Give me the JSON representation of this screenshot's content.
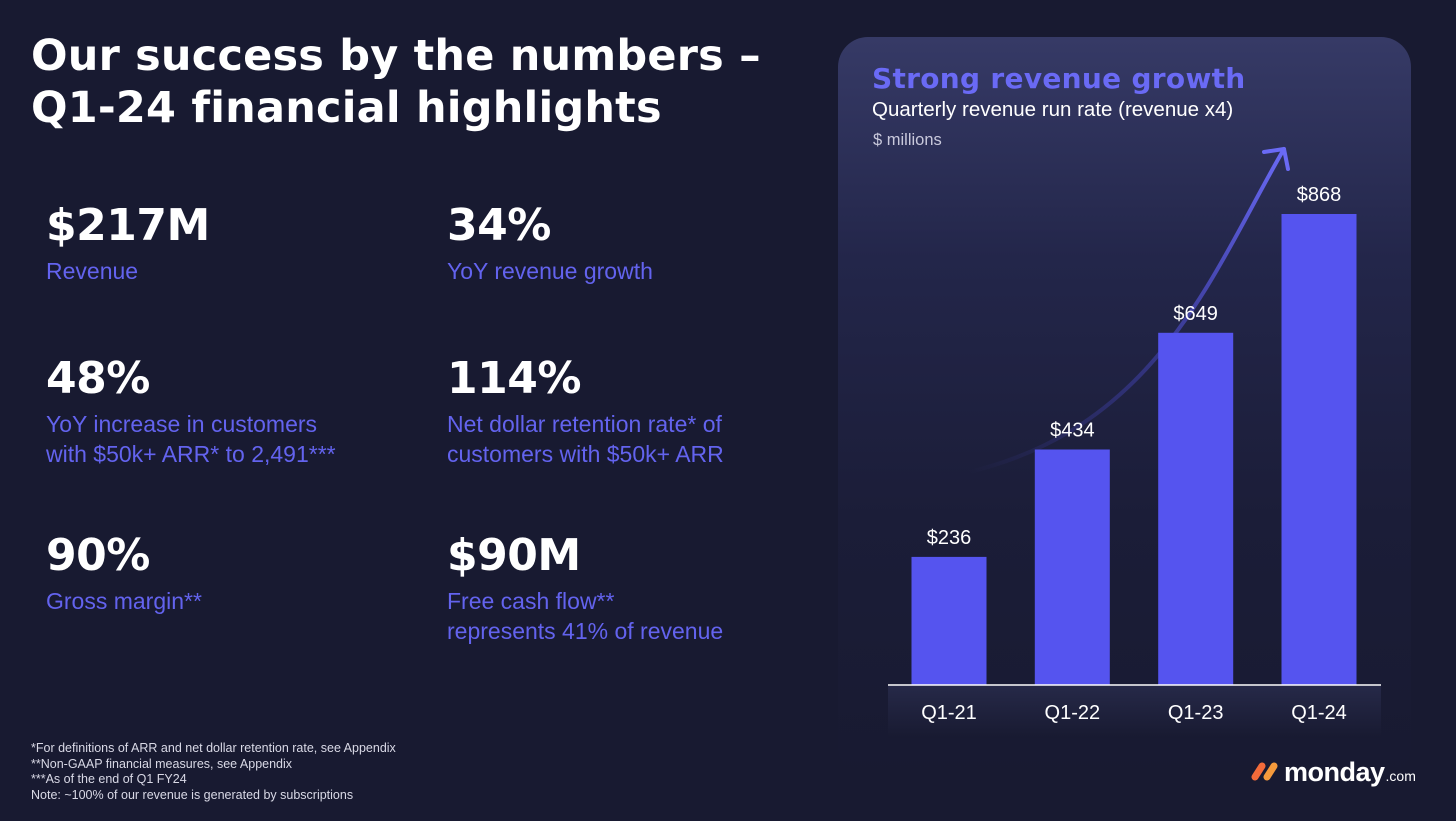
{
  "title": "Our success by the numbers – Q1-24 financial highlights",
  "metrics": [
    {
      "value": "$217M",
      "label_lines": [
        "Revenue"
      ]
    },
    {
      "value": "34%",
      "label_lines": [
        "YoY revenue growth"
      ]
    },
    {
      "value": "48%",
      "label_lines": [
        "YoY increase in customers",
        "with $50k+ ARR* to 2,491***"
      ]
    },
    {
      "value": "114%",
      "label_lines": [
        "Net dollar retention rate* of",
        "customers with $50k+ ARR"
      ]
    },
    {
      "value": "90%",
      "label_lines": [
        "Gross margin**"
      ]
    },
    {
      "value": "$90M",
      "label_lines": [
        "Free cash flow**",
        "represents 41% of revenue"
      ]
    }
  ],
  "footnotes": [
    "*For definitions of ARR and net dollar retention rate, see Appendix",
    "**Non-GAAP financial measures, see Appendix",
    "***As of the end of Q1 FY24",
    "Note: ~100% of our revenue is generated by subscriptions"
  ],
  "logo": {
    "text": "monday",
    "suffix": ".com"
  },
  "colors": {
    "background": "#181a31",
    "accent": "#5554ef",
    "label_text": "#6363ee",
    "logo_mark": [
      "#f26b3a",
      "#f59a3c"
    ]
  },
  "chart_data": {
    "type": "bar",
    "title": "Strong revenue growth",
    "subtitle": "Quarterly revenue run rate (revenue x4)",
    "unit_label": "$ millions",
    "categories": [
      "Q1-21",
      "Q1-22",
      "Q1-23",
      "Q1-24"
    ],
    "values": [
      236,
      434,
      649,
      868
    ],
    "data_labels": [
      "$236",
      "$434",
      "$649",
      "$868"
    ],
    "xlabel": "",
    "ylabel": "",
    "ylim": [
      0,
      868
    ],
    "grid": false,
    "trend_arrow": true
  }
}
